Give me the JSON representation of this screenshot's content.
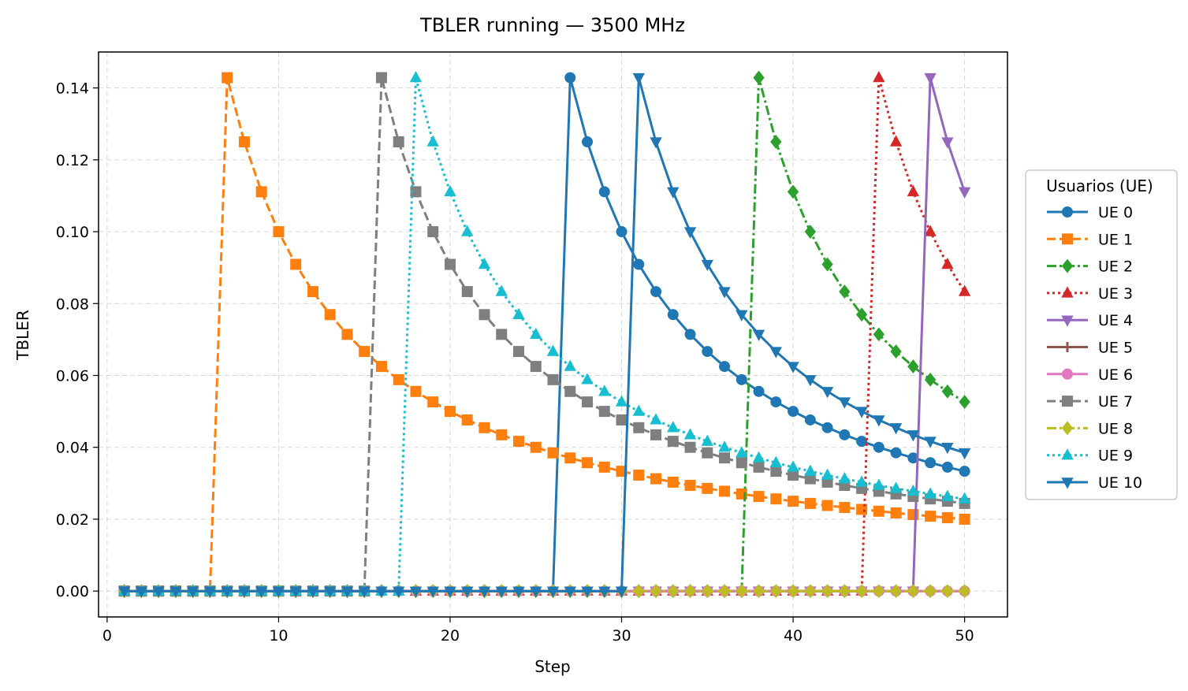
{
  "chart_data": {
    "type": "line",
    "title": "TBLER running — 3500 MHz",
    "xlabel": "Step",
    "ylabel": "TBLER",
    "xlim": [
      -0.5,
      52.5
    ],
    "ylim": [
      -0.0072,
      0.15
    ],
    "xticks": [
      0,
      10,
      20,
      30,
      40,
      50
    ],
    "xtick_labels": [
      "0",
      "10",
      "20",
      "30",
      "40",
      "50"
    ],
    "yticks": [
      0.0,
      0.02,
      0.04,
      0.06,
      0.08,
      0.1,
      0.12,
      0.14
    ],
    "ytick_labels": [
      "0.00",
      "0.02",
      "0.04",
      "0.06",
      "0.08",
      "0.10",
      "0.12",
      "0.14"
    ],
    "grid": true,
    "legend": {
      "title": "Usuarios (UE)",
      "placement": "outside-right"
    },
    "series": [
      {
        "name": "UE 0",
        "color": "#1f77b4",
        "marker": "circle",
        "dash": "solid",
        "start": 26
      },
      {
        "name": "UE 1",
        "color": "#ff7f0e",
        "marker": "square",
        "dash": "dashed",
        "start": 6
      },
      {
        "name": "UE 2",
        "color": "#2ca02c",
        "marker": "diamond",
        "dash": "dashdot",
        "start": 37
      },
      {
        "name": "UE 3",
        "color": "#d62728",
        "marker": "triangle-up",
        "dash": "dotted",
        "start": 44
      },
      {
        "name": "UE 4",
        "color": "#9467bd",
        "marker": "triangle-down",
        "dash": "solid",
        "start": 47
      },
      {
        "name": "UE 5",
        "color": "#8c564b",
        "marker": "plus",
        "dash": "solid",
        "start": null
      },
      {
        "name": "UE 6",
        "color": "#e377c2",
        "marker": "circle",
        "dash": "solid",
        "start": null
      },
      {
        "name": "UE 7",
        "color": "#7f7f7f",
        "marker": "square",
        "dash": "dashed",
        "start": 15
      },
      {
        "name": "UE 8",
        "color": "#bcbd22",
        "marker": "diamond",
        "dash": "dashdot",
        "start": null
      },
      {
        "name": "UE 9",
        "color": "#17becf",
        "marker": "triangle-up",
        "dash": "dotted",
        "start": 17
      },
      {
        "name": "UE 10",
        "color": "#1f77b4",
        "marker": "triangle-down",
        "dash": "solid",
        "start": 30
      }
    ]
  }
}
